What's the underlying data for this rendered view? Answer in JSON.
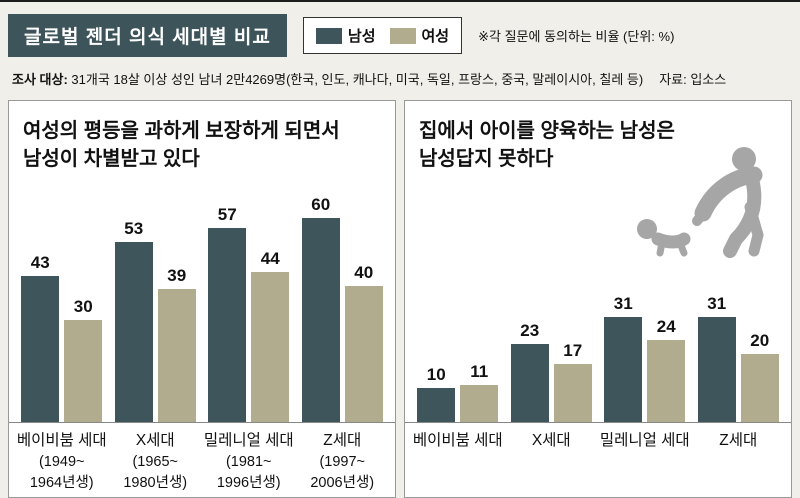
{
  "header": {
    "title": "글로벌 젠더 의식 세대별 비교",
    "legend": [
      {
        "label": "남성"
      },
      {
        "label": "여성"
      }
    ],
    "note": "※각 질문에 동의하는 비율  (단위: %)"
  },
  "survey": {
    "label": "조사 대상:",
    "text": " 31개국 18살 이상 성인 남녀 2만4269명(한국, 인도, 캐나다, 미국, 독일, 프랑스, 중국, 말레이시아, 칠레 등)",
    "source": "자료: 입소스"
  },
  "colors": {
    "male": "#3d555b",
    "female": "#b1ac8d",
    "background": "#f1efe9",
    "icon_gray": "#a6a6a6"
  },
  "chart_data": [
    {
      "type": "bar",
      "title": "여성의 평등을 과하게 보장하게 되면서 남성이 차별받고 있다",
      "title_lines": [
        "여성의 평등을 과하게 보장하게 되면서",
        "남성이 차별받고 있다"
      ],
      "categories": [
        "베이비붐 세대",
        "X세대",
        "밀레니얼 세대",
        "Z세대"
      ],
      "category_sublabels": [
        [
          "(1949~",
          "1964년생)"
        ],
        [
          "(1965~",
          "1980년생)"
        ],
        [
          "(1981~",
          "1996년생)"
        ],
        [
          "(1997~",
          "2006년생)"
        ]
      ],
      "series": [
        {
          "name": "남성",
          "values": [
            43,
            53,
            57,
            60
          ]
        },
        {
          "name": "여성",
          "values": [
            30,
            39,
            44,
            40
          ]
        }
      ],
      "unit": "%",
      "ylim": [
        0,
        65
      ],
      "legend_position": "top",
      "grid": false
    },
    {
      "type": "bar",
      "title": "집에서 아이를 양육하는 남성은 남성답지 못하다",
      "title_lines": [
        "집에서 아이를 양육하는 남성은",
        "남성답지 못하다"
      ],
      "categories": [
        "베이비붐 세대",
        "X세대",
        "밀레니얼 세대",
        "Z세대"
      ],
      "category_sublabels": null,
      "series": [
        {
          "name": "남성",
          "values": [
            10,
            23,
            31,
            31
          ]
        },
        {
          "name": "여성",
          "values": [
            11,
            17,
            24,
            20
          ]
        }
      ],
      "unit": "%",
      "ylim": [
        0,
        65
      ],
      "legend_position": "top",
      "grid": false
    }
  ]
}
